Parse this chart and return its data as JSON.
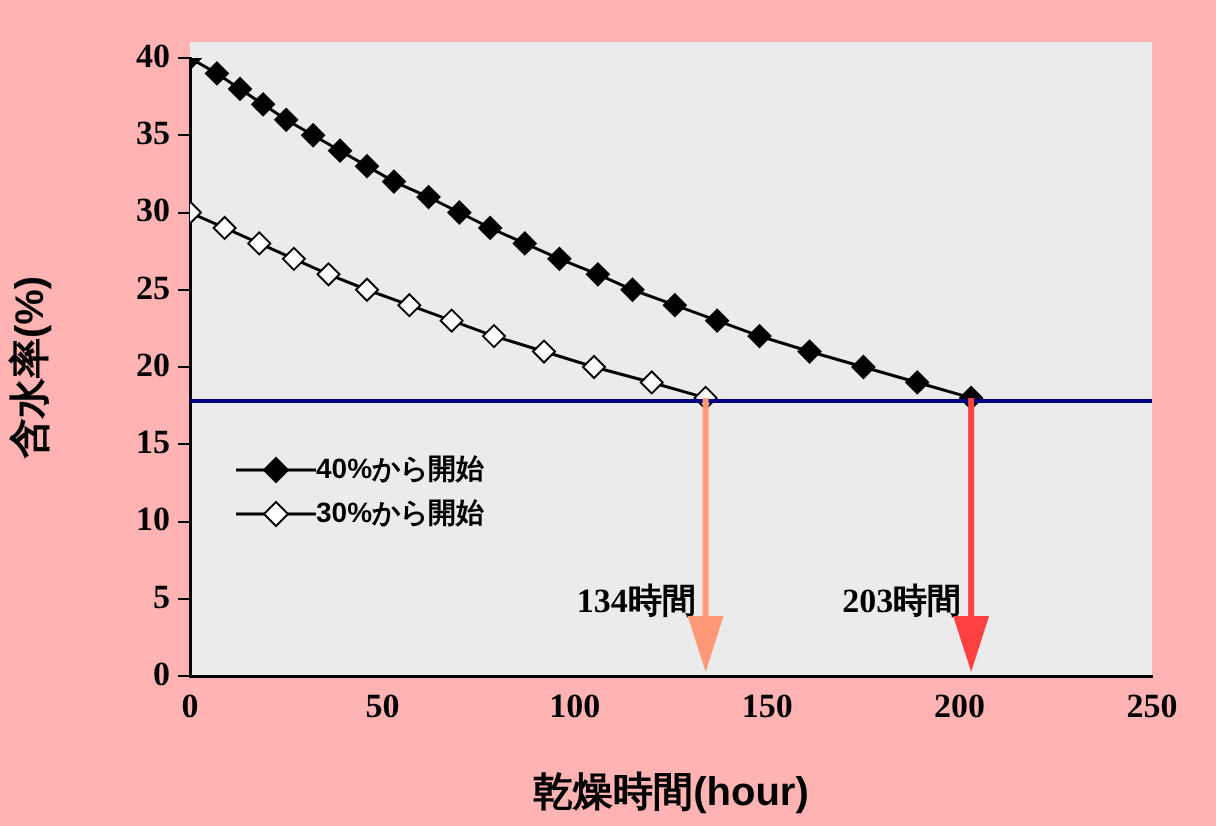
{
  "chart_data": {
    "type": "line",
    "xlabel": "乾燥時間(hour)",
    "ylabel": "含水率(%)",
    "xlim": [
      0,
      250
    ],
    "xticks": [
      0,
      50,
      100,
      150,
      200,
      250
    ],
    "ylim": [
      0,
      40
    ],
    "yticks": [
      0,
      5,
      10,
      15,
      20,
      25,
      30,
      35,
      40
    ],
    "grid": false,
    "legend": "left",
    "marker": "diamond",
    "line_style": "solid",
    "series": [
      {
        "name": "40%から開始",
        "color": "#000000",
        "x": [
          0,
          7,
          13,
          19,
          25,
          32,
          39,
          46,
          53,
          62,
          70,
          78,
          87,
          96,
          106,
          115,
          126,
          137,
          148,
          161,
          175,
          189,
          203
        ],
        "values": [
          40,
          39,
          38,
          37,
          36,
          35,
          34,
          33,
          32,
          31,
          30,
          29,
          28,
          27,
          26,
          25,
          24,
          23,
          22,
          21,
          20,
          19,
          18
        ]
      },
      {
        "name": "30%から開始",
        "color": "#ffffff",
        "x": [
          0,
          9,
          18,
          27,
          36,
          46,
          57,
          68,
          79,
          92,
          105,
          120,
          134
        ],
        "values": [
          30,
          29,
          28,
          27,
          26,
          25,
          24,
          23,
          22,
          21,
          20,
          19,
          18
        ]
      }
    ],
    "ref_lines": [
      {
        "axis": "y",
        "value": 17.8,
        "color": "#000080"
      }
    ],
    "annotations": [
      {
        "text": "134時間",
        "x": 134,
        "y": 18
      },
      {
        "text": "203時間",
        "x": 203,
        "y": 18
      }
    ]
  }
}
